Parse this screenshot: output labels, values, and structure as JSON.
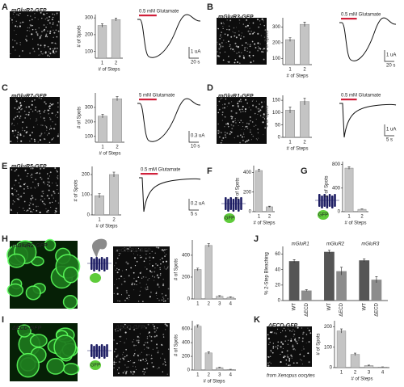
{
  "chart_data": [
    {
      "type": "bar",
      "categories": [
        "1",
        "2"
      ],
      "values": [
        255,
        290
      ],
      "errors": [
        10,
        8
      ],
      "ylim": [
        60,
        320
      ],
      "yticks": [
        100,
        200,
        300
      ],
      "ylabel": "# of Spots",
      "xlabel": "# of Steps",
      "color": "#c4c4c4"
    },
    {
      "type": "bar",
      "categories": [
        "1",
        "2"
      ],
      "values": [
        220,
        318
      ],
      "errors": [
        12,
        14
      ],
      "ylim": [
        60,
        360
      ],
      "yticks": [
        100,
        200,
        300
      ],
      "ylabel": "# of Spots",
      "xlabel": "# of Steps",
      "color": "#c4c4c4"
    },
    {
      "type": "bar",
      "categories": [
        "1",
        "2"
      ],
      "values": [
        240,
        360
      ],
      "errors": [
        12,
        14
      ],
      "ylim": [
        60,
        400
      ],
      "yticks": [
        100,
        200,
        300
      ],
      "ylabel": "# of Spots",
      "xlabel": "# of Steps",
      "color": "#c4c4c4"
    },
    {
      "type": "bar",
      "categories": [
        "1",
        "2"
      ],
      "values": [
        110,
        145
      ],
      "errors": [
        12,
        14
      ],
      "ylim": [
        0,
        170
      ],
      "yticks": [
        0,
        50,
        100,
        150
      ],
      "ylabel": "# of Spots",
      "xlabel": "# of Steps",
      "color": "#c4c4c4"
    },
    {
      "type": "bar",
      "categories": [
        "1",
        "2"
      ],
      "values": [
        95,
        200
      ],
      "errors": [
        10,
        12
      ],
      "ylim": [
        0,
        240
      ],
      "yticks": [
        0,
        100,
        200
      ],
      "ylabel": "# of Spots",
      "xlabel": "# of Steps",
      "color": "#c4c4c4"
    },
    {
      "type": "bar",
      "categories": [
        "1",
        "2"
      ],
      "values": [
        420,
        50
      ],
      "errors": [
        15,
        6
      ],
      "ylim": [
        0,
        470
      ],
      "yticks": [
        0,
        200,
        400
      ],
      "ylabel": "# of Spots",
      "xlabel": "# of Steps",
      "color": "#c4c4c4"
    },
    {
      "type": "bar",
      "categories": [
        "1",
        "2"
      ],
      "values": [
        740,
        40
      ],
      "errors": [
        20,
        5
      ],
      "ylim": [
        0,
        850
      ],
      "yticks": [
        0,
        400,
        800
      ],
      "ylabel": "# of Spots",
      "xlabel": "# of Steps",
      "color": "#c4c4c4"
    },
    {
      "type": "bar",
      "categories": [
        "1",
        "2",
        "3",
        "4"
      ],
      "values": [
        270,
        490,
        25,
        15
      ],
      "errors": [
        12,
        15,
        5,
        4
      ],
      "ylim": [
        0,
        540
      ],
      "yticks": [
        0,
        200,
        400
      ],
      "ylabel": "# of Spots",
      "color": "#c4c4c4"
    },
    {
      "type": "bar",
      "categories": [
        "1",
        "2",
        "3",
        "4"
      ],
      "values": [
        640,
        250,
        35,
        8
      ],
      "errors": [
        20,
        15,
        6,
        3
      ],
      "ylim": [
        0,
        720
      ],
      "yticks": [
        0,
        200,
        400,
        600
      ],
      "ylabel": "# of Spots",
      "xlabel": "# of Steps",
      "color": "#c4c4c4"
    },
    {
      "type": "grouped_bar",
      "categories": [
        "mGluR1",
        "mGluR2",
        "mGluR3"
      ],
      "series": [
        {
          "name": "WT",
          "color": "#555555",
          "values": [
            51,
            63,
            52
          ],
          "errors": [
            2,
            2,
            2
          ]
        },
        {
          "name": "ΔECD",
          "color": "#8c8c8c",
          "values": [
            13,
            38,
            27
          ],
          "errors": [
            1,
            5,
            4
          ]
        }
      ],
      "ylim": [
        0,
        70
      ],
      "yticks": [
        0,
        20,
        40,
        60
      ],
      "ylabel": "% 2-Step Bleaching"
    },
    {
      "type": "bar",
      "categories": [
        "1",
        "2",
        "3",
        "4"
      ],
      "values": [
        180,
        65,
        10,
        3
      ],
      "errors": [
        10,
        6,
        2,
        1
      ],
      "ylim": [
        0,
        230
      ],
      "yticks": [
        0,
        100,
        200
      ],
      "ylabel": "# of Spots",
      "xlabel": "# of Steps",
      "color": "#c4c4c4"
    }
  ],
  "panels": [
    {
      "letter": "A",
      "image_label": "mGluR2-GFP",
      "stimulus": "0.5 mM Glutamate",
      "scale_current": "1 uA",
      "scale_time": "20 s"
    },
    {
      "letter": "B",
      "image_label": "mGluR3-GFP",
      "stimulus": "0.5 mM Glutamate",
      "scale_current": "1 uA",
      "scale_time": "20 s"
    },
    {
      "letter": "C",
      "image_label": "mGluR7-GFP",
      "stimulus": "5 mM Glutamate",
      "scale_current": "0.3 uA",
      "scale_time": "10 s"
    },
    {
      "letter": "D",
      "image_label": "mGluR1-GFP",
      "stimulus": "0.5 mM Glutamate",
      "scale_current": "1 uA",
      "scale_time": "5 s"
    },
    {
      "letter": "E",
      "image_label": "mGluR5-GFP",
      "stimulus": "0.5 mM Glutamate",
      "scale_current": "0.2 uA",
      "scale_time": "5 s"
    },
    {
      "letter": "F",
      "cartoon_label": "GFP"
    },
    {
      "letter": "G",
      "cartoon_label": "GFP"
    },
    {
      "letter": "H",
      "image_label": "mGluR2-GFP",
      "image2_label": "mGluR2-GFP"
    },
    {
      "letter": "I",
      "image_label": "ΔECD-GFP",
      "cartoon_label": "GFP",
      "image2_label": "ΔECD-GFP"
    },
    {
      "letter": "J"
    },
    {
      "letter": "K",
      "image_label": "ΔECD-GFP",
      "note": "from Xenopus oocytes"
    }
  ]
}
